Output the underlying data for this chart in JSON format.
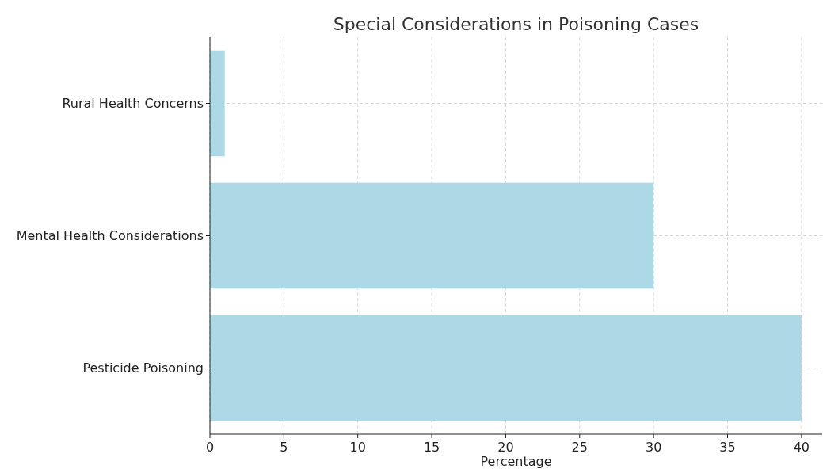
{
  "chart_data": {
    "type": "bar",
    "orientation": "horizontal",
    "title": "Special Considerations in Poisoning Cases",
    "xlabel": "Percentage",
    "categories": [
      "Rural Health Concerns",
      "Mental Health Considerations",
      "Pesticide Poisoning"
    ],
    "values": [
      1,
      30,
      40
    ],
    "color": "#add8e6",
    "xlim": [
      0,
      41.4
    ],
    "xticks": [
      0,
      5,
      10,
      15,
      20,
      25,
      30,
      35,
      40
    ],
    "grid": true
  }
}
